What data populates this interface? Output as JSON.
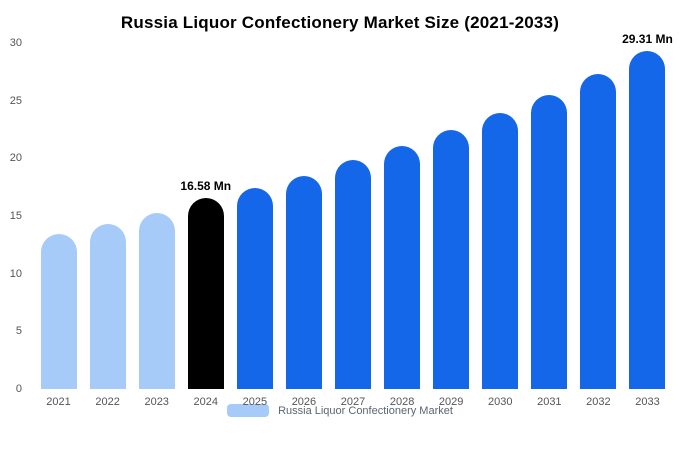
{
  "title": "Russia Liquor Confectionery Market Size (2021-2033)",
  "legend": {
    "label": "Russia Liquor Confectionery Market",
    "swatch_color": "#a6cbf8"
  },
  "colors": {
    "past": "#a6cbf8",
    "current": "#000000",
    "forecast": "#1467e8"
  },
  "chart_data": {
    "type": "bar",
    "title": "Russia Liquor Confectionery Market Size (2021-2033)",
    "categories": [
      "2021",
      "2022",
      "2023",
      "2024",
      "2025",
      "2026",
      "2027",
      "2028",
      "2029",
      "2030",
      "2031",
      "2032",
      "2033"
    ],
    "values": [
      13.4,
      14.3,
      15.3,
      16.58,
      17.4,
      18.5,
      19.9,
      21.1,
      22.5,
      23.9,
      25.5,
      27.3,
      29.31
    ],
    "unit": "Mn",
    "series_colors": [
      "past",
      "past",
      "past",
      "current",
      "forecast",
      "forecast",
      "forecast",
      "forecast",
      "forecast",
      "forecast",
      "forecast",
      "forecast",
      "forecast"
    ],
    "annotations": [
      {
        "index": 3,
        "text": "16.58 Mn"
      },
      {
        "index": 12,
        "text": "29.31 Mn"
      }
    ],
    "xlabel": "",
    "ylabel": "",
    "ylim": [
      0,
      30
    ],
    "yticks": [
      0,
      5,
      10,
      15,
      20,
      25,
      30
    ],
    "grid": false,
    "legend_position": "bottom"
  }
}
